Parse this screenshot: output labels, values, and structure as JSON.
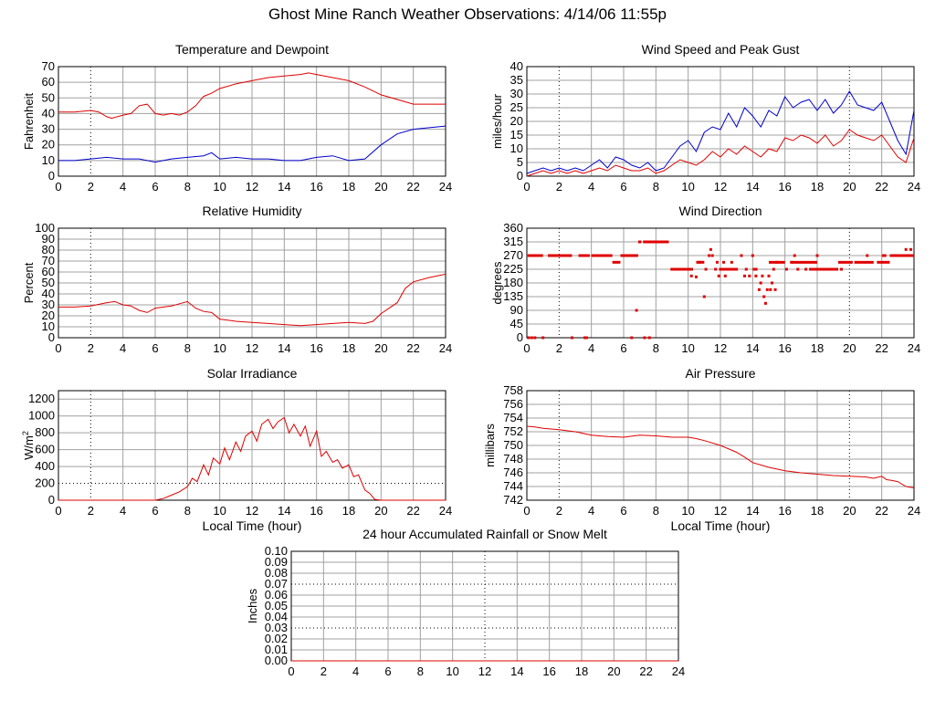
{
  "page_title": "Ghost Mine Ranch Weather Observations: 4/14/06 11:55p",
  "colors": {
    "red": "#e00000",
    "blue": "#0000cc",
    "grid": "#a0a0a0",
    "axis": "#000000"
  },
  "chart_data": [
    {
      "id": "temp",
      "type": "line",
      "title": "Temperature and Dewpoint",
      "xlabel": "",
      "ylabel": "Fahrenheit",
      "xlim": [
        0,
        24
      ],
      "ylim": [
        0,
        70
      ],
      "x_ticks": [
        0,
        2,
        4,
        6,
        8,
        10,
        12,
        14,
        16,
        18,
        20,
        22,
        24
      ],
      "y_ticks": [
        0,
        10,
        20,
        30,
        40,
        50,
        60,
        70
      ],
      "series": [
        {
          "color": "#e00000",
          "x": [
            0,
            1,
            2,
            2.5,
            3,
            3.3,
            4,
            4.5,
            5,
            5.5,
            6,
            6.5,
            7,
            7.5,
            8,
            8.5,
            9,
            9.5,
            10,
            11,
            12,
            13,
            14,
            15,
            15.5,
            16,
            17,
            18,
            19,
            20,
            21,
            22,
            23,
            24
          ],
          "y": [
            41,
            41,
            42,
            41,
            38,
            37,
            39,
            40,
            45,
            46,
            40,
            39,
            40,
            39,
            41,
            45,
            51,
            53,
            56,
            59,
            61,
            63,
            64,
            65,
            66,
            65,
            63,
            61,
            57,
            52,
            49,
            46,
            46,
            46
          ]
        },
        {
          "color": "#0000cc",
          "x": [
            0,
            1,
            2,
            3,
            4,
            5,
            6,
            7,
            8,
            9,
            9.5,
            10,
            11,
            12,
            13,
            14,
            15,
            16,
            17,
            18,
            19,
            20,
            21,
            22,
            23,
            24
          ],
          "y": [
            10,
            10,
            11,
            12,
            11,
            11,
            9,
            11,
            12,
            13,
            15,
            11,
            12,
            11,
            11,
            10,
            10,
            12,
            13,
            10,
            11,
            20,
            27,
            30,
            31,
            32
          ]
        }
      ]
    },
    {
      "id": "wind",
      "type": "line",
      "title": "Wind Speed and Peak Gust",
      "xlabel": "",
      "ylabel": "miles/hour",
      "xlim": [
        0,
        24
      ],
      "ylim": [
        0,
        40
      ],
      "x_ticks": [
        0,
        2,
        4,
        6,
        8,
        10,
        12,
        14,
        16,
        18,
        20,
        22,
        24
      ],
      "y_ticks": [
        0,
        5,
        10,
        15,
        20,
        25,
        30,
        35,
        40
      ],
      "series": [
        {
          "color": "#0000cc",
          "x": [
            0,
            0.5,
            1,
            1.5,
            2,
            2.5,
            3,
            3.5,
            4,
            4.5,
            5,
            5.5,
            6,
            6.5,
            7,
            7.5,
            8,
            8.5,
            9,
            9.5,
            10,
            10.5,
            11,
            11.5,
            12,
            12.5,
            13,
            13.5,
            14,
            14.5,
            15,
            15.5,
            16,
            16.5,
            17,
            17.5,
            18,
            18.5,
            19,
            19.5,
            20,
            20.5,
            21,
            21.5,
            22,
            22.5,
            23,
            23.5,
            24
          ],
          "y": [
            1,
            2,
            3,
            2,
            3,
            2,
            3,
            2,
            4,
            6,
            3,
            7,
            6,
            4,
            3,
            5,
            2,
            3,
            7,
            11,
            13,
            9,
            16,
            18,
            17,
            23,
            18,
            25,
            22,
            18,
            24,
            22,
            29,
            25,
            27,
            28,
            24,
            28,
            23,
            26,
            31,
            26,
            25,
            24,
            27,
            20,
            13,
            8,
            24
          ]
        },
        {
          "color": "#e00000",
          "x": [
            0,
            0.5,
            1,
            1.5,
            2,
            2.5,
            3,
            3.5,
            4,
            4.5,
            5,
            5.5,
            6,
            6.5,
            7,
            7.5,
            8,
            8.5,
            9,
            9.5,
            10,
            10.5,
            11,
            11.5,
            12,
            12.5,
            13,
            13.5,
            14,
            14.5,
            15,
            15.5,
            16,
            16.5,
            17,
            17.5,
            18,
            18.5,
            19,
            19.5,
            20,
            20.5,
            21,
            21.5,
            22,
            22.5,
            23,
            23.5,
            24
          ],
          "y": [
            0,
            1,
            2,
            1,
            2,
            1,
            2,
            1,
            2,
            3,
            2,
            4,
            3,
            2,
            2,
            3,
            1,
            2,
            4,
            6,
            5,
            4,
            6,
            9,
            7,
            10,
            8,
            11,
            9,
            7,
            10,
            9,
            14,
            13,
            15,
            14,
            12,
            15,
            11,
            13,
            17,
            15,
            14,
            13,
            15,
            11,
            7,
            5,
            14
          ]
        }
      ]
    },
    {
      "id": "rh",
      "type": "line",
      "title": "Relative Humidity",
      "xlabel": "",
      "ylabel": "Percent",
      "xlim": [
        0,
        24
      ],
      "ylim": [
        0,
        100
      ],
      "x_ticks": [
        0,
        2,
        4,
        6,
        8,
        10,
        12,
        14,
        16,
        18,
        20,
        22,
        24
      ],
      "y_ticks": [
        0,
        10,
        20,
        30,
        40,
        50,
        60,
        70,
        80,
        90,
        100
      ],
      "series": [
        {
          "color": "#e00000",
          "x": [
            0,
            1,
            2,
            3,
            3.5,
            4,
            4.5,
            5,
            5.5,
            6,
            6.5,
            7,
            7.5,
            8,
            8.5,
            9,
            9.5,
            10,
            11,
            12,
            13,
            14,
            15,
            16,
            17,
            18,
            19,
            19.5,
            20,
            21,
            21.5,
            22,
            23,
            24
          ],
          "y": [
            28,
            28,
            29,
            32,
            33,
            30,
            29,
            25,
            23,
            27,
            28,
            29,
            31,
            33,
            27,
            24,
            23,
            17,
            15,
            14,
            13,
            12,
            11,
            12,
            13,
            14,
            13,
            15,
            22,
            32,
            45,
            51,
            55,
            58
          ]
        }
      ]
    },
    {
      "id": "wdir",
      "type": "scatter",
      "title": "Wind Direction",
      "xlabel": "",
      "ylabel": "degrees",
      "xlim": [
        0,
        24
      ],
      "ylim": [
        0,
        360
      ],
      "x_ticks": [
        0,
        2,
        4,
        6,
        8,
        10,
        12,
        14,
        16,
        18,
        20,
        22,
        24
      ],
      "y_ticks": [
        0,
        45,
        90,
        135,
        180,
        225,
        270,
        315,
        360
      ],
      "series": [
        {
          "color": "#e00000",
          "segments": [
            [
              0.05,
              1.0,
              270
            ],
            [
              1.3,
              2.8,
              270
            ],
            [
              3.2,
              3.9,
              270
            ],
            [
              4.0,
              5.3,
              270
            ],
            [
              5.3,
              5.8,
              248
            ],
            [
              5.8,
              6.9,
              270
            ],
            [
              6.9,
              7.1,
              315
            ],
            [
              7.2,
              8.8,
              315
            ],
            [
              8.9,
              10.3,
              225
            ],
            [
              10.5,
              11.0,
              248
            ],
            [
              12.0,
              13.0,
              225
            ],
            [
              14.0,
              14.3,
              225
            ],
            [
              15.0,
              16.0,
              248
            ],
            [
              16.4,
              18.0,
              248
            ],
            [
              17.5,
              19.3,
              225
            ],
            [
              19.3,
              20.2,
              248
            ],
            [
              20.3,
              21.5,
              248
            ],
            [
              21.7,
              22.5,
              248
            ],
            [
              22.5,
              24,
              270
            ]
          ],
          "points": [
            [
              0.1,
              0
            ],
            [
              0.3,
              0
            ],
            [
              0.5,
              0
            ],
            [
              1.0,
              0
            ],
            [
              2.8,
              0
            ],
            [
              3.6,
              0
            ],
            [
              3.7,
              0
            ],
            [
              6.5,
              0
            ],
            [
              6.8,
              90
            ],
            [
              7.3,
              0
            ],
            [
              7.6,
              0
            ],
            [
              10.2,
              203
            ],
            [
              10.5,
              200
            ],
            [
              10.7,
              248
            ],
            [
              11.0,
              135
            ],
            [
              11.1,
              225
            ],
            [
              11.3,
              270
            ],
            [
              11.4,
              290
            ],
            [
              11.5,
              270
            ],
            [
              11.7,
              225
            ],
            [
              11.8,
              248
            ],
            [
              11.9,
              203
            ],
            [
              12.0,
              225
            ],
            [
              12.2,
              248
            ],
            [
              12.3,
              203
            ],
            [
              12.5,
              225
            ],
            [
              12.7,
              248
            ],
            [
              12.9,
              225
            ],
            [
              13.0,
              225
            ],
            [
              13.3,
              270
            ],
            [
              13.5,
              203
            ],
            [
              13.6,
              225
            ],
            [
              13.8,
              203
            ],
            [
              14.0,
              270
            ],
            [
              14.2,
              203
            ],
            [
              14.4,
              158
            ],
            [
              14.5,
              180
            ],
            [
              14.6,
              203
            ],
            [
              14.7,
              135
            ],
            [
              14.8,
              113
            ],
            [
              14.9,
              158
            ],
            [
              15.0,
              203
            ],
            [
              15.1,
              158
            ],
            [
              15.2,
              180
            ],
            [
              15.3,
              225
            ],
            [
              15.4,
              158
            ],
            [
              15.5,
              248
            ],
            [
              16.1,
              225
            ],
            [
              16.4,
              248
            ],
            [
              16.6,
              270
            ],
            [
              16.8,
              225
            ],
            [
              17.3,
              225
            ],
            [
              18.0,
              270
            ],
            [
              19.5,
              225
            ],
            [
              21.1,
              270
            ],
            [
              22.1,
              270
            ],
            [
              22.2,
              270
            ],
            [
              23.3,
              270
            ],
            [
              23.5,
              290
            ],
            [
              23.8,
              290
            ]
          ]
        }
      ]
    },
    {
      "id": "solar",
      "type": "line",
      "title": "Solar Irradiance",
      "xlabel": "Local Time (hour)",
      "ylabel": "W/m",
      "ylabel_sup": "2",
      "xlim": [
        0,
        24
      ],
      "ylim": [
        0,
        1300
      ],
      "x_ticks": [
        0,
        2,
        4,
        6,
        8,
        10,
        12,
        14,
        16,
        18,
        20,
        22,
        24
      ],
      "y_ticks": [
        0,
        200,
        400,
        600,
        800,
        1000,
        1200
      ],
      "series": [
        {
          "color": "#e00000",
          "x": [
            0,
            6,
            6.5,
            7,
            7.5,
            8,
            8.3,
            8.6,
            9,
            9.3,
            9.6,
            10,
            10.3,
            10.6,
            11,
            11.3,
            11.6,
            12,
            12.3,
            12.6,
            13,
            13.3,
            13.6,
            14,
            14.3,
            14.6,
            15,
            15.3,
            15.6,
            16,
            16.3,
            16.6,
            17,
            17.3,
            17.6,
            18,
            18.3,
            18.6,
            19,
            19.3,
            19.6,
            20,
            21,
            22,
            23,
            24
          ],
          "y": [
            0,
            0,
            20,
            60,
            100,
            160,
            260,
            220,
            420,
            300,
            500,
            430,
            620,
            480,
            690,
            580,
            760,
            820,
            700,
            900,
            960,
            850,
            930,
            980,
            800,
            900,
            760,
            880,
            640,
            820,
            520,
            580,
            450,
            480,
            380,
            420,
            280,
            300,
            120,
            80,
            10,
            0,
            0,
            0,
            0,
            0
          ]
        }
      ]
    },
    {
      "id": "pressure",
      "type": "line",
      "title": "Air Pressure",
      "xlabel": "Local Time (hour)",
      "ylabel": "millibars",
      "xlim": [
        0,
        24
      ],
      "ylim": [
        742,
        758
      ],
      "x_ticks": [
        0,
        2,
        4,
        6,
        8,
        10,
        12,
        14,
        16,
        18,
        20,
        22,
        24
      ],
      "y_ticks": [
        742,
        744,
        746,
        748,
        750,
        752,
        754,
        756,
        758
      ],
      "series": [
        {
          "color": "#e00000",
          "x": [
            0,
            0.5,
            1,
            2,
            3,
            4,
            5,
            6,
            7,
            8,
            9,
            10,
            10.5,
            11,
            12,
            13,
            13.5,
            14,
            15,
            16,
            17,
            18,
            19,
            20,
            21,
            21.5,
            22,
            22.3,
            22.6,
            23,
            23.5,
            24
          ],
          "y": [
            752.8,
            752.7,
            752.5,
            752.3,
            752.0,
            751.5,
            751.3,
            751.2,
            751.5,
            751.4,
            751.2,
            751.2,
            751.0,
            750.7,
            750.0,
            749.0,
            748.3,
            747.5,
            746.8,
            746.3,
            746.0,
            745.8,
            745.6,
            745.5,
            745.4,
            745.2,
            745.5,
            745.0,
            744.9,
            744.7,
            744.0,
            743.8
          ]
        }
      ]
    },
    {
      "id": "rain",
      "type": "line",
      "title": "24 hour Accumulated Rainfall or Snow Melt",
      "xlabel": "",
      "ylabel": "Inches",
      "xlim": [
        0,
        24
      ],
      "ylim": [
        0,
        0.1
      ],
      "x_ticks": [
        0,
        2,
        4,
        6,
        8,
        10,
        12,
        14,
        16,
        18,
        20,
        22,
        24
      ],
      "y_ticks": [
        "0.00",
        "0.01",
        "0.02",
        "0.03",
        "0.04",
        "0.05",
        "0.06",
        "0.07",
        "0.08",
        "0.09",
        "0.10"
      ],
      "series": [
        {
          "color": "#e00000",
          "x": [
            0,
            24
          ],
          "y": [
            0,
            0
          ]
        }
      ]
    }
  ]
}
